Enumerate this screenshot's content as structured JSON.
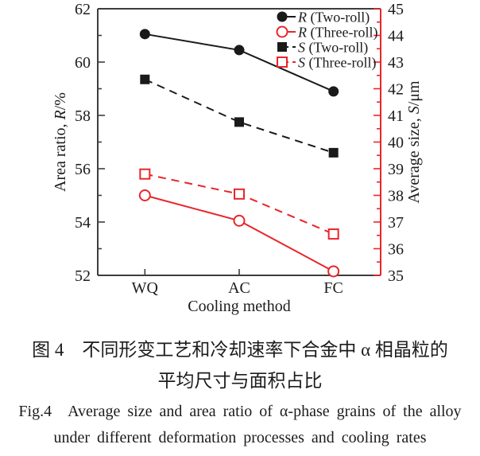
{
  "figure": {
    "caption_zh_1": "图 4　不同形变工艺和冷却速率下合金中 α 相晶粒的",
    "caption_zh_2": "平均尺寸与面积占比",
    "caption_en_1": "Fig.4　Average size and area ratio of α-phase grains of the alloy",
    "caption_en_2": "under different deformation processes and cooling rates"
  },
  "colors": {
    "black_series": "#1a1a1a",
    "red_series": "#e8262b",
    "spine": "#3d3d3d",
    "tick_label": "#1c1c1c"
  },
  "chart_data": {
    "type": "line",
    "categories": [
      "WQ",
      "AC",
      "FC"
    ],
    "x_axis": {
      "label": "Cooling method",
      "tick_labels": [
        "WQ",
        "AC",
        "FC"
      ]
    },
    "left_axis": {
      "label": "Area ratio, R/%",
      "label_parts": [
        {
          "text": "Area ratio, ",
          "italic": false
        },
        {
          "text": "R",
          "italic": true
        },
        {
          "text": "/%",
          "italic": false
        }
      ],
      "min": 52,
      "max": 62,
      "major_step": 2,
      "minor_step": 1,
      "tick_labels": [
        "52",
        "54",
        "56",
        "58",
        "60",
        "62"
      ]
    },
    "right_axis": {
      "label": "Average size, S/μm",
      "label_parts": [
        {
          "text": "Average size, ",
          "italic": false
        },
        {
          "text": "S",
          "italic": true
        },
        {
          "text": "/μm",
          "italic": false
        }
      ],
      "min": 35,
      "max": 45,
      "major_step": 1,
      "minor_step": 0.5,
      "tick_labels": [
        "35",
        "36",
        "37",
        "38",
        "39",
        "40",
        "41",
        "42",
        "43",
        "44",
        "45"
      ]
    },
    "grid": false,
    "legend_position": "upper-right-inside",
    "series": [
      {
        "name": "R (Two-roll)",
        "symbol": "R",
        "rest": " (Two-roll)",
        "axis": "left",
        "color": "black_series",
        "line": "solid",
        "marker": "circle",
        "fill": "filled",
        "values": [
          61.05,
          60.45,
          58.9
        ]
      },
      {
        "name": "R (Three-roll)",
        "symbol": "R",
        "rest": " (Three-roll)",
        "axis": "left",
        "color": "red_series",
        "line": "solid",
        "marker": "circle",
        "fill": "open",
        "values": [
          55.0,
          54.05,
          52.15
        ]
      },
      {
        "name": "S (Two-roll)",
        "symbol": "S",
        "rest": " (Two-roll)",
        "axis": "right",
        "color": "black_series",
        "line": "dashed",
        "marker": "square",
        "fill": "filled",
        "values": [
          42.35,
          40.75,
          39.6
        ]
      },
      {
        "name": "S (Three-roll)",
        "symbol": "S",
        "rest": " (Three-roll)",
        "axis": "right",
        "color": "red_series",
        "line": "dashed",
        "marker": "square",
        "fill": "open",
        "values": [
          38.8,
          38.05,
          36.55
        ]
      }
    ]
  }
}
